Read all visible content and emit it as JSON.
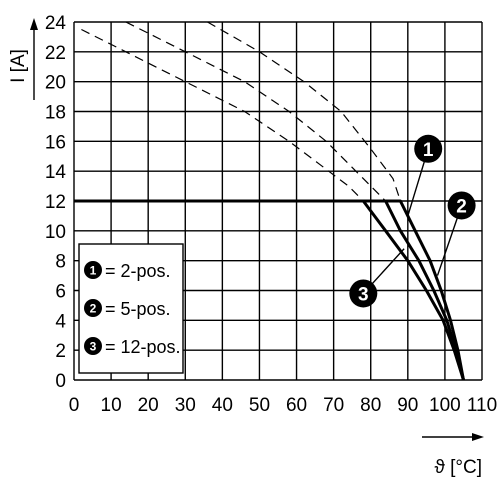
{
  "chart_data": {
    "type": "line",
    "xlabel": "ϑ [°C]",
    "ylabel": "I [A]",
    "xlim": [
      0,
      110
    ],
    "ylim": [
      0,
      24
    ],
    "x_ticks": [
      0,
      10,
      20,
      30,
      40,
      50,
      60,
      70,
      80,
      90,
      100,
      110
    ],
    "y_ticks": [
      0,
      2,
      4,
      6,
      8,
      10,
      12,
      14,
      16,
      18,
      20,
      22,
      24
    ],
    "grid": true,
    "legend_position": "bottom-left",
    "series": [
      {
        "name": "2-pos.",
        "marker": "1",
        "solid": [
          [
            0,
            12
          ],
          [
            88,
            12
          ],
          [
            92,
            10
          ],
          [
            96,
            8
          ],
          [
            99,
            6
          ],
          [
            101.5,
            4
          ],
          [
            103.5,
            2
          ],
          [
            105,
            0
          ]
        ],
        "dashed": [
          [
            36,
            24
          ],
          [
            50,
            22
          ],
          [
            62,
            20
          ],
          [
            72,
            18
          ],
          [
            80,
            15.5
          ],
          [
            86,
            13.5
          ],
          [
            88,
            12
          ]
        ]
      },
      {
        "name": "5-pos.",
        "marker": "2",
        "solid": [
          [
            0,
            12
          ],
          [
            84,
            12
          ],
          [
            88,
            10
          ],
          [
            93,
            8
          ],
          [
            97,
            6
          ],
          [
            100.5,
            4
          ],
          [
            103,
            2
          ],
          [
            105,
            0
          ]
        ],
        "dashed": [
          [
            14,
            24
          ],
          [
            30,
            22
          ],
          [
            46,
            20
          ],
          [
            58,
            18
          ],
          [
            68,
            16
          ],
          [
            76,
            14
          ],
          [
            84,
            12
          ]
        ]
      },
      {
        "name": "12-pos.",
        "marker": "3",
        "solid": [
          [
            0,
            12
          ],
          [
            78,
            12
          ],
          [
            84,
            10
          ],
          [
            90,
            8
          ],
          [
            95,
            6
          ],
          [
            99.5,
            4
          ],
          [
            102.5,
            2
          ],
          [
            105,
            0
          ]
        ],
        "dashed": [
          [
            2,
            23.5
          ],
          [
            10,
            22.5
          ],
          [
            22,
            21
          ],
          [
            34,
            19.5
          ],
          [
            46,
            18
          ],
          [
            58,
            16
          ],
          [
            66,
            14.5
          ],
          [
            74,
            13
          ],
          [
            78,
            12
          ]
        ]
      }
    ],
    "legend": [
      {
        "marker": "1",
        "label": "= 2-pos."
      },
      {
        "marker": "2",
        "label": "= 5-pos."
      },
      {
        "marker": "3",
        "label": "= 12-pos."
      }
    ],
    "annotations": [
      {
        "marker": "1",
        "target_series": "2-pos.",
        "label_at": [
          95.5,
          15.5
        ],
        "point_at": [
          90,
          11
        ]
      },
      {
        "marker": "2",
        "target_series": "5-pos.",
        "label_at": [
          104.5,
          11.7
        ],
        "point_at": [
          98,
          7
        ]
      },
      {
        "marker": "3",
        "target_series": "12-pos.",
        "label_at": [
          78,
          5.8
        ],
        "point_at": [
          89,
          8.8
        ]
      }
    ]
  }
}
